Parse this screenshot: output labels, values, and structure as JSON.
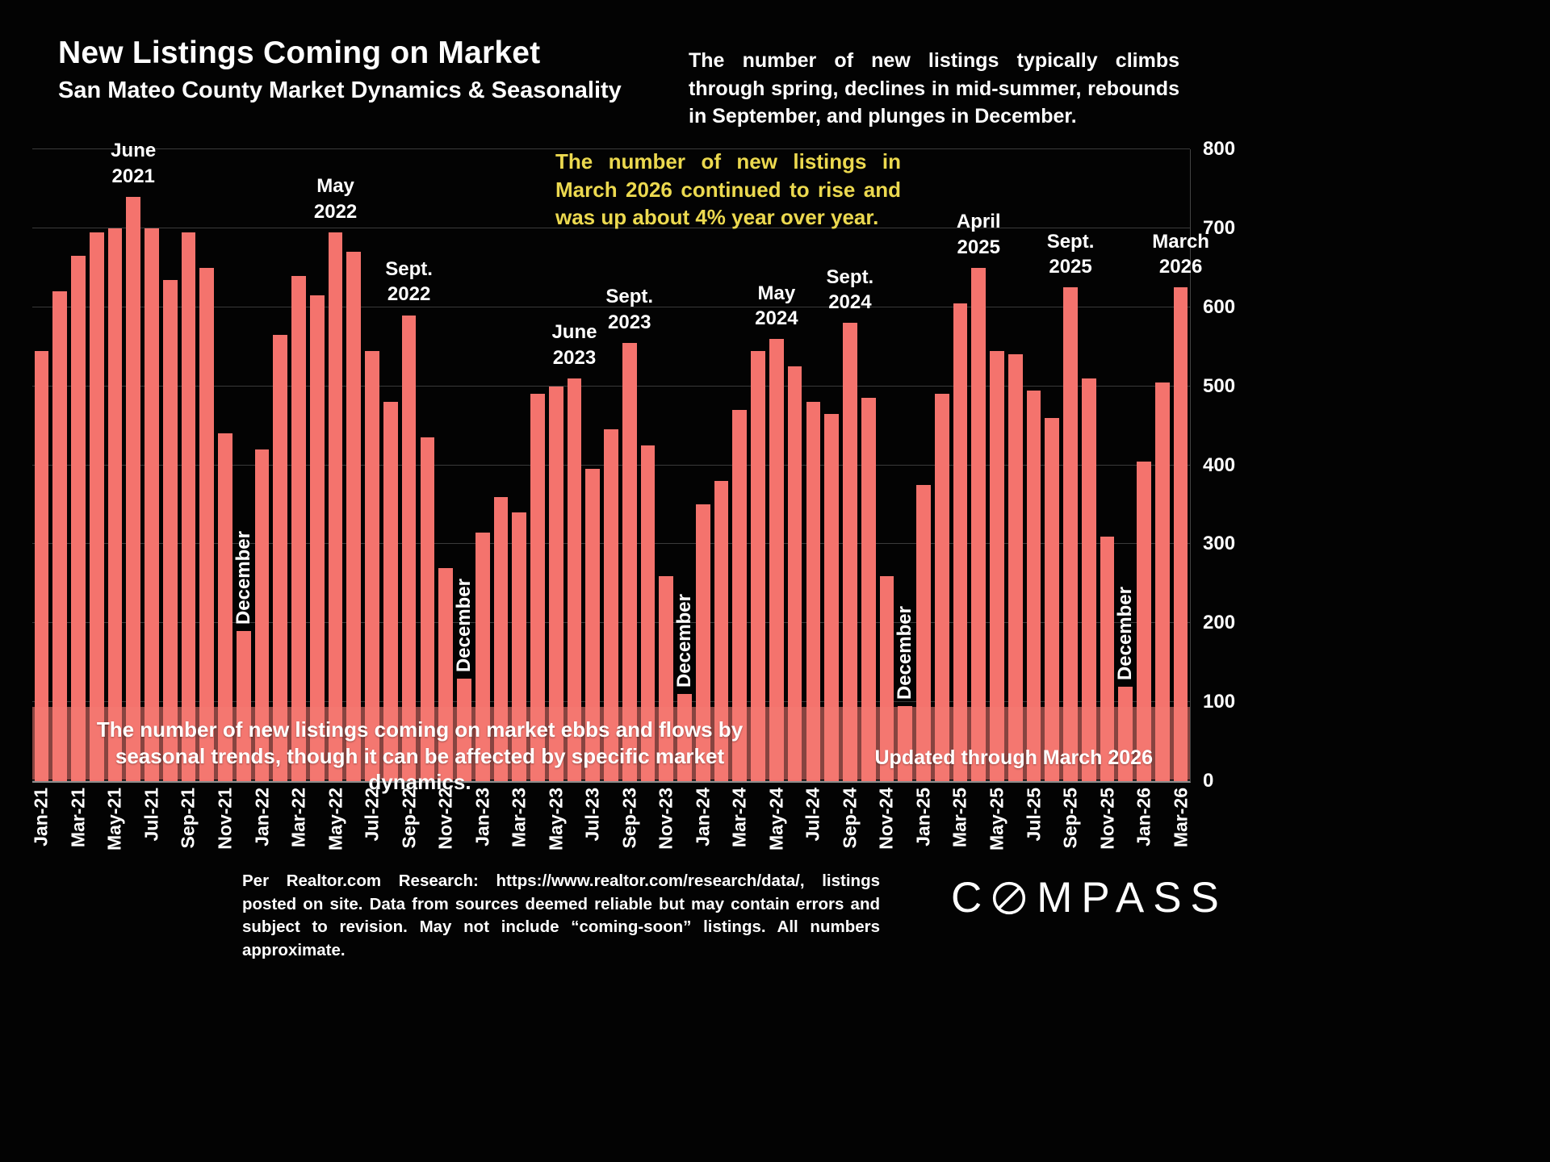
{
  "header": {
    "title": "New Listings Coming on Market",
    "subtitle": "San Mateo County Market Dynamics & Seasonality",
    "description": "The number of new listings typically climbs through spring, declines in mid-summer, rebounds in September, and plunges in December."
  },
  "callout": "The number of new listings in March 2026 continued to rise and was up about 4% year over year.",
  "band": {
    "note": "The number of new listings coming on market ebbs and flows by seasonal trends, though it can be affected by specific market dynamics.",
    "updated": "Updated through March 2026"
  },
  "footer": "Per Realtor.com Research: https://www.realtor.com/research/data/, listings posted on site. Data from sources deemed reliable but may contain errors and subject to revision. May not include “coming-soon” listings. All numbers approximate.",
  "logo": {
    "prefix": "C",
    "suffix": "MPASS"
  },
  "chart_data": {
    "type": "bar",
    "title": "New Listings Coming on Market",
    "subtitle": "San Mateo County Market Dynamics & Seasonality",
    "xlabel": "",
    "ylabel": "",
    "ylim": [
      0,
      800
    ],
    "yticks": [
      0,
      100,
      200,
      300,
      400,
      500,
      600,
      700,
      800
    ],
    "grid": true,
    "bar_color": "#f4736d",
    "x_tick_every": 2,
    "categories": [
      "Jan-21",
      "Feb-21",
      "Mar-21",
      "Apr-21",
      "May-21",
      "Jun-21",
      "Jul-21",
      "Aug-21",
      "Sep-21",
      "Oct-21",
      "Nov-21",
      "Dec-21",
      "Jan-22",
      "Feb-22",
      "Mar-22",
      "Apr-22",
      "May-22",
      "Jun-22",
      "Jul-22",
      "Aug-22",
      "Sep-22",
      "Oct-22",
      "Nov-22",
      "Dec-22",
      "Jan-23",
      "Feb-23",
      "Mar-23",
      "Apr-23",
      "May-23",
      "Jun-23",
      "Jul-23",
      "Aug-23",
      "Sep-23",
      "Oct-23",
      "Nov-23",
      "Dec-23",
      "Jan-24",
      "Feb-24",
      "Mar-24",
      "Apr-24",
      "May-24",
      "Jun-24",
      "Jul-24",
      "Aug-24",
      "Sep-24",
      "Oct-24",
      "Nov-24",
      "Dec-24",
      "Jan-25",
      "Feb-25",
      "Mar-25",
      "Apr-25",
      "May-25",
      "Jun-25",
      "Jul-25",
      "Aug-25",
      "Sep-25",
      "Oct-25",
      "Nov-25",
      "Dec-25",
      "Jan-26",
      "Feb-26",
      "Mar-26"
    ],
    "values": [
      545,
      620,
      665,
      695,
      700,
      740,
      700,
      635,
      695,
      650,
      440,
      190,
      420,
      565,
      640,
      615,
      695,
      670,
      545,
      480,
      590,
      435,
      270,
      130,
      315,
      360,
      340,
      490,
      500,
      510,
      395,
      445,
      555,
      425,
      260,
      110,
      350,
      380,
      470,
      545,
      560,
      525,
      480,
      465,
      580,
      485,
      260,
      95,
      375,
      490,
      605,
      650,
      545,
      540,
      495,
      460,
      625,
      510,
      310,
      120,
      405,
      505,
      625
    ],
    "annotations": [
      {
        "index": 5,
        "lines": [
          "June",
          "2021"
        ]
      },
      {
        "index": 16,
        "lines": [
          "May",
          "2022"
        ]
      },
      {
        "index": 20,
        "lines": [
          "Sept.",
          "2022"
        ]
      },
      {
        "index": 29,
        "lines": [
          "June",
          "2023"
        ]
      },
      {
        "index": 32,
        "lines": [
          "Sept.",
          "2023"
        ]
      },
      {
        "index": 40,
        "lines": [
          "May",
          "2024"
        ]
      },
      {
        "index": 44,
        "lines": [
          "Sept.",
          "2024"
        ]
      },
      {
        "index": 51,
        "lines": [
          "April",
          "2025"
        ]
      },
      {
        "index": 56,
        "lines": [
          "Sept.",
          "2025"
        ]
      },
      {
        "index": 62,
        "lines": [
          "March",
          "2026"
        ]
      }
    ],
    "december_label": {
      "text": "December",
      "indices": [
        11,
        23,
        35,
        47,
        59
      ]
    },
    "legend": null
  }
}
